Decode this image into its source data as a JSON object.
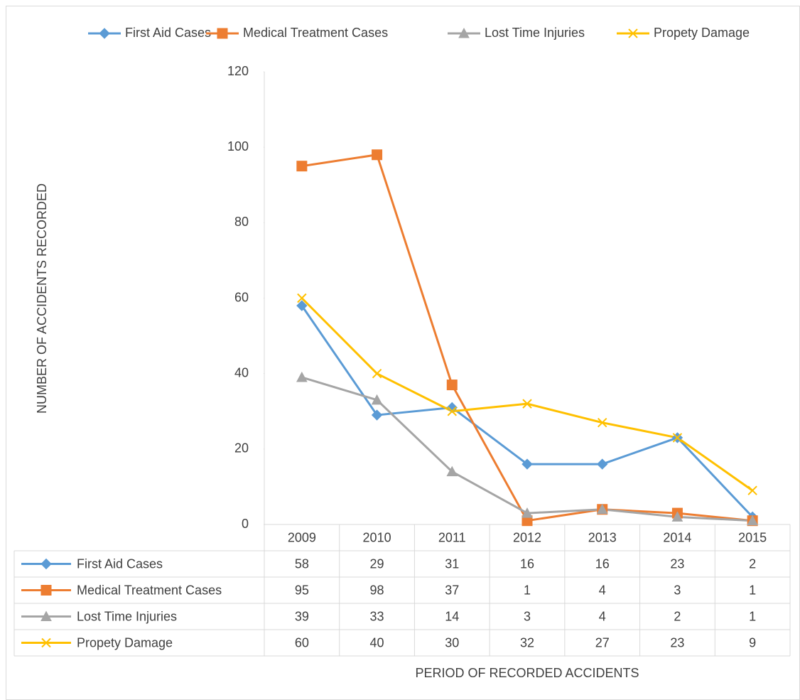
{
  "chart_data": {
    "type": "line",
    "x_label": "PERIOD OF RECORDED ACCIDENTS",
    "y_label": "NUMBER OF ACCIDENTS RECORDED",
    "categories": [
      "2009",
      "2010",
      "2011",
      "2012",
      "2013",
      "2014",
      "2015"
    ],
    "series": [
      {
        "name": "First Aid Cases",
        "color": "#5b9bd5",
        "marker": "diamond",
        "values": [
          58,
          29,
          31,
          16,
          16,
          23,
          2
        ]
      },
      {
        "name": "Medical Treatment Cases",
        "color": "#ed7d31",
        "marker": "square",
        "values": [
          95,
          98,
          37,
          1,
          4,
          3,
          1
        ]
      },
      {
        "name": "Lost Time Injuries",
        "color": "#a5a5a5",
        "marker": "triangle",
        "values": [
          39,
          33,
          14,
          3,
          4,
          2,
          1
        ]
      },
      {
        "name": "Propety Damage",
        "color": "#ffc000",
        "marker": "x",
        "values": [
          60,
          40,
          30,
          32,
          27,
          23,
          9
        ]
      }
    ],
    "ylim": [
      0,
      120
    ],
    "yticks": [
      0,
      20,
      40,
      60,
      80,
      100,
      120
    ],
    "legend": "top",
    "data_table": true
  }
}
